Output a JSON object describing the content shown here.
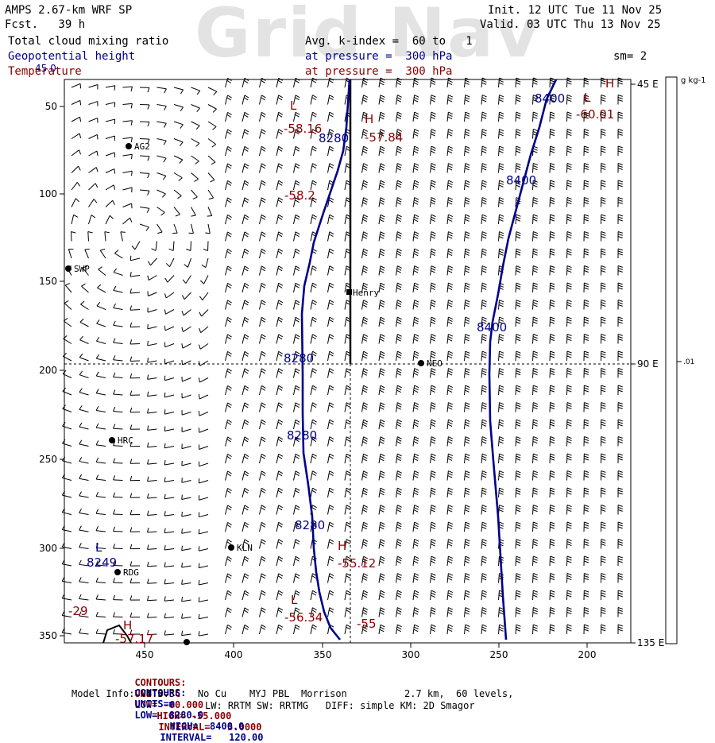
{
  "header": {
    "model": "AMPS 2.67-km WRF SP",
    "fcst": "Fcst.   39 h",
    "init": "Init. 12 UTC Tue 11 Nov 25",
    "valid": "Valid. 03 UTC Thu 13 Nov 25",
    "field1": "Total cloud mixing ratio",
    "field2": "Geopotential height",
    "field3": "Temperature",
    "avg": "Avg. k-index =  60 to   1",
    "pres1": "at pressure =  300 hPa",
    "pres2": "at pressure =  300 hPa",
    "sm": "sm= 2"
  },
  "watermark": "Grid Nav",
  "colorbar": {
    "unit": "g kg-1",
    "tick": ".01"
  },
  "axes": {
    "y_ticks": [
      "50",
      "100",
      "150",
      "200",
      "250",
      "300",
      "350"
    ],
    "x_ticks": [
      "450",
      "400",
      "350",
      "300",
      "250",
      "200"
    ],
    "right_labels": [
      "45 E",
      "90 E",
      "135 E"
    ],
    "corner_label": "45.0"
  },
  "stations": [
    "AG2",
    "SWP",
    "Henry",
    "NEO",
    "HRC",
    "KLN",
    "RDG"
  ],
  "height_labels": [
    "8400",
    "8280",
    "8400",
    "8400",
    "8280",
    "8280",
    "8280",
    "8249"
  ],
  "temp_labels": {
    "values": [
      "-58.16",
      "-57.84",
      "-58.2",
      "-60.01",
      "-55.12",
      "-56.34",
      "-55",
      "-57.17",
      "-29"
    ],
    "lh": [
      "H",
      "L",
      "H",
      "L",
      "H",
      "L",
      "H"
    ]
  },
  "footer": {
    "line1": {
      "contours": "CONTOURS:",
      "units": "UNITS=°C",
      "low": "LOW= -60.000",
      "high": "HIGH= -55.000",
      "interval": "INTERVAL=   5.0000"
    },
    "line2": {
      "contours": "CONTOURS:",
      "units": "UNITS=m",
      "low": "LOW=  8280.0",
      "high": "HIGH=  8400.0",
      "interval": "INTERVAL=   120.00"
    },
    "model_info": "Model Info: V4.3.3    No Cu    MYJ PBL  Morrison          2.7 km,  60 levels,",
    "model_info2": "LW: RRTM SW: RRTMG   DIFF: simple KM: 2D Smagor"
  },
  "colors": {
    "height": "#00008b",
    "temperature": "#8b0000",
    "frame": "#000000",
    "grid": "#000000"
  }
}
